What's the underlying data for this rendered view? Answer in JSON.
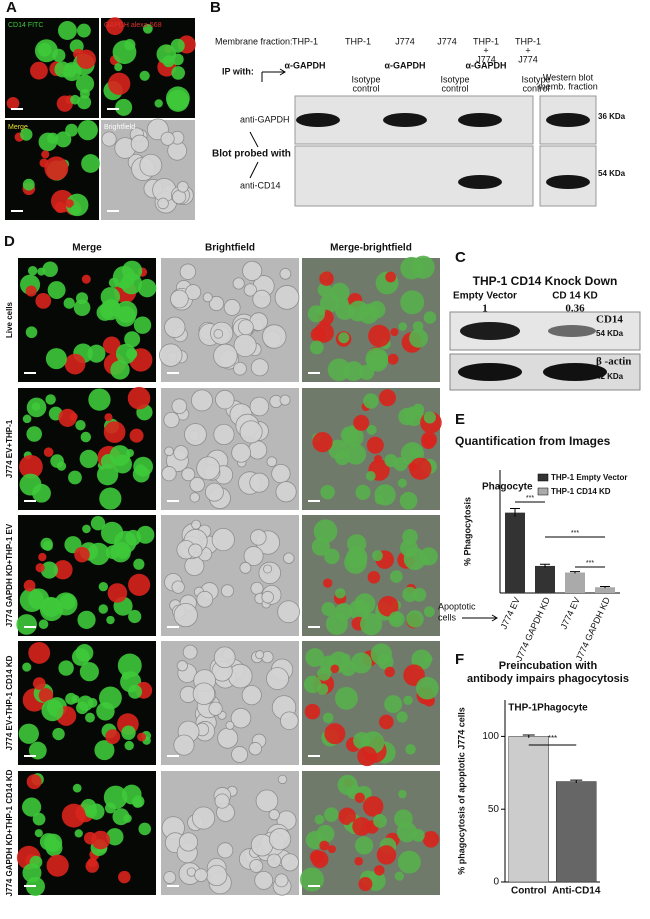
{
  "panels": {
    "a": {
      "label": "A",
      "tiles": [
        "CD14 FITC",
        "GAPDH alexa-568",
        "Merge",
        "Brightfield"
      ]
    },
    "b": {
      "label": "B",
      "membrane_fraction": "Membrane fraction:",
      "lanes": [
        [
          "THP-1"
        ],
        [
          "THP-1"
        ],
        [
          "J774"
        ],
        [
          "J774"
        ],
        [
          "THP-1",
          "+",
          "J774"
        ],
        [
          "THP-1",
          "+",
          "J774"
        ]
      ],
      "ip_with": "IP with:",
      "ip": [
        [
          "α-GAPDH"
        ],
        [
          "Isotype",
          "control"
        ],
        [
          "α-GAPDH"
        ],
        [
          "Isotype",
          "control"
        ],
        [
          "α-GAPDH"
        ],
        [
          "Isotype",
          "control"
        ]
      ],
      "western": [
        "Western blot",
        "memb. fraction"
      ],
      "probe_gapdh": "anti-GAPDH",
      "probed_with": "Blot probed with",
      "probe_cd14": "anti-CD14",
      "kda_top": "36 KDa",
      "kda_bottom": "54 KDa"
    },
    "c": {
      "label": "C",
      "title": "THP-1 CD14 Knock Down",
      "lanes": [
        "Empty Vector",
        "CD 14 KD"
      ],
      "values": [
        1,
        0.36
      ],
      "band1": "CD14",
      "band1_kda": "54 KDa",
      "band2": "β -actin",
      "band2_kda": "42 KDa"
    },
    "d": {
      "label": "D",
      "columns": [
        "Merge",
        "Brightfield",
        "Merge-brightfield"
      ],
      "rows": [
        "Live cells",
        "J774 EV+THP-1",
        "J774 GAPDH KD+THP-1 EV",
        "J774 EV+THP-1 CD14 KD",
        "J774 GAPDH KD+THP-1 CD14 KD"
      ]
    },
    "e": {
      "label": "E"
    },
    "f": {
      "label": "F"
    }
  },
  "chart_data": [
    {
      "type": "bar",
      "title": "Quantification from Images",
      "y_label": "% Phagocytosis",
      "categories": [
        "J774 EV",
        "J774 GAPDH KD",
        "J774 EV",
        "J774 GAPDH KD"
      ],
      "series": [
        {
          "name": "THP-1 Empty Vector",
          "color": "#333333",
          "values": [
            98,
            33,
            null,
            null
          ],
          "errors": [
            5,
            2,
            null,
            null
          ]
        },
        {
          "name": "THP-1 CD14 KD",
          "color": "#aaaaaa",
          "values": [
            null,
            null,
            25,
            7
          ],
          "errors": [
            null,
            null,
            1,
            1
          ]
        }
      ],
      "ylim": [
        0,
        150
      ],
      "annotations": [
        "Phagocyte"
      ],
      "x_annotation": [
        "Apoptotic",
        "cells"
      ],
      "significance": [
        "***",
        "***",
        "***"
      ]
    },
    {
      "type": "bar",
      "title": [
        "Preincubation with",
        "antibody impairs phagocytosis"
      ],
      "subtitle": "THP-1Phagocyte",
      "y_label": "% phagocytosis of apoptotic J774 cells",
      "categories": [
        "Control",
        "Anti-CD14"
      ],
      "values": [
        100,
        69
      ],
      "errors": [
        1,
        1
      ],
      "colors": [
        "#cccccc",
        "#666666"
      ],
      "ylim": [
        0,
        125
      ],
      "yticks": [
        0,
        50,
        100
      ],
      "significance": [
        "***"
      ]
    }
  ]
}
